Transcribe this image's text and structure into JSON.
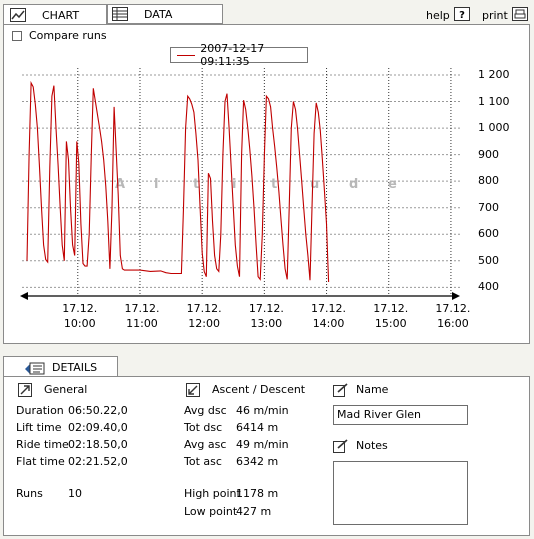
{
  "tabs": [
    {
      "label": "CHART",
      "icon": "chart-icon"
    },
    {
      "label": "DATA",
      "icon": "table-icon"
    }
  ],
  "header": {
    "help_label": "help",
    "print_label": "print"
  },
  "chart_options": {
    "compare_runs_label": "Compare runs",
    "compare_runs_checked": false
  },
  "chart_data": {
    "type": "line",
    "legend": [
      "2007-12-17 09:11:35"
    ],
    "series": [
      {
        "name": "2007-12-17 09:11:35",
        "color": "#c00000"
      }
    ],
    "watermark": "A l t i t u d e",
    "y_ticks": [
      "1 200",
      "1 100",
      "1 000",
      "900",
      "800",
      "700",
      "600",
      "500",
      "400"
    ],
    "y_tick_values": [
      1200,
      1100,
      1000,
      900,
      800,
      700,
      600,
      500,
      400
    ],
    "ylim": [
      390,
      1200
    ],
    "x_ticks": [
      {
        "date": "17.12.",
        "time": "10:00"
      },
      {
        "date": "17.12.",
        "time": "11:00"
      },
      {
        "date": "17.12.",
        "time": "12:00"
      },
      {
        "date": "17.12.",
        "time": "13:00"
      },
      {
        "date": "17.12.",
        "time": "14:00"
      },
      {
        "date": "17.12.",
        "time": "15:00"
      },
      {
        "date": "17.12.",
        "time": "16:00"
      }
    ],
    "x_tick_values": [
      "10:00",
      "11:00",
      "12:00",
      "13:00",
      "14:00",
      "15:00",
      "16:00"
    ],
    "xlim": [
      "09:11",
      "16:02"
    ],
    "grid": true,
    "points": [
      [
        "09:11",
        500
      ],
      [
        "09:13",
        900
      ],
      [
        "09:15",
        1170
      ],
      [
        "09:17",
        1155
      ],
      [
        "09:19",
        1090
      ],
      [
        "09:21",
        1000
      ],
      [
        "09:23",
        860
      ],
      [
        "09:25",
        700
      ],
      [
        "09:27",
        560
      ],
      [
        "09:29",
        505
      ],
      [
        "09:31",
        495
      ],
      [
        "09:33",
        850
      ],
      [
        "09:35",
        1120
      ],
      [
        "09:37",
        1160
      ],
      [
        "09:39",
        1000
      ],
      [
        "09:41",
        860
      ],
      [
        "09:43",
        700
      ],
      [
        "09:45",
        560
      ],
      [
        "09:47",
        500
      ],
      [
        "09:49",
        950
      ],
      [
        "09:51",
        880
      ],
      [
        "09:53",
        700
      ],
      [
        "09:55",
        560
      ],
      [
        "09:57",
        520
      ],
      [
        "09:59",
        950
      ],
      [
        "10:01",
        870
      ],
      [
        "10:03",
        640
      ],
      [
        "10:05",
        490
      ],
      [
        "10:07",
        480
      ],
      [
        "10:09",
        480
      ],
      [
        "10:11",
        600
      ],
      [
        "10:13",
        900
      ],
      [
        "10:15",
        1150
      ],
      [
        "10:17",
        1100
      ],
      [
        "10:19",
        1050
      ],
      [
        "10:21",
        1000
      ],
      [
        "10:23",
        950
      ],
      [
        "10:25",
        880
      ],
      [
        "10:27",
        780
      ],
      [
        "10:29",
        650
      ],
      [
        "10:31",
        470
      ],
      [
        "10:33",
        700
      ],
      [
        "10:35",
        1080
      ],
      [
        "10:37",
        920
      ],
      [
        "10:39",
        750
      ],
      [
        "10:41",
        520
      ],
      [
        "10:43",
        470
      ],
      [
        "10:45",
        465
      ],
      [
        "10:50",
        465
      ],
      [
        "11:00",
        465
      ],
      [
        "11:10",
        460
      ],
      [
        "11:20",
        462
      ],
      [
        "11:25",
        455
      ],
      [
        "11:30",
        452
      ],
      [
        "11:40",
        452
      ],
      [
        "11:42",
        700
      ],
      [
        "11:44",
        1000
      ],
      [
        "11:46",
        1120
      ],
      [
        "11:48",
        1110
      ],
      [
        "11:50",
        1090
      ],
      [
        "11:52",
        1060
      ],
      [
        "11:54",
        980
      ],
      [
        "11:56",
        880
      ],
      [
        "11:58",
        700
      ],
      [
        "12:00",
        530
      ],
      [
        "12:02",
        460
      ],
      [
        "12:04",
        440
      ],
      [
        "12:06",
        830
      ],
      [
        "12:08",
        810
      ],
      [
        "12:10",
        650
      ],
      [
        "12:12",
        520
      ],
      [
        "12:14",
        470
      ],
      [
        "12:16",
        460
      ],
      [
        "12:18",
        600
      ],
      [
        "12:20",
        900
      ],
      [
        "12:22",
        1100
      ],
      [
        "12:24",
        1130
      ],
      [
        "12:26",
        1000
      ],
      [
        "12:28",
        850
      ],
      [
        "12:30",
        700
      ],
      [
        "12:32",
        560
      ],
      [
        "12:34",
        480
      ],
      [
        "12:36",
        440
      ],
      [
        "12:38",
        900
      ],
      [
        "12:40",
        1105
      ],
      [
        "12:42",
        1070
      ],
      [
        "12:44",
        1000
      ],
      [
        "12:46",
        920
      ],
      [
        "12:48",
        820
      ],
      [
        "12:50",
        700
      ],
      [
        "12:52",
        560
      ],
      [
        "12:54",
        440
      ],
      [
        "12:56",
        430
      ],
      [
        "12:58",
        600
      ],
      [
        "13:00",
        900
      ],
      [
        "13:02",
        1120
      ],
      [
        "13:04",
        1110
      ],
      [
        "13:06",
        1080
      ],
      [
        "13:08",
        1000
      ],
      [
        "13:10",
        930
      ],
      [
        "13:12",
        850
      ],
      [
        "13:14",
        760
      ],
      [
        "13:16",
        660
      ],
      [
        "13:18",
        560
      ],
      [
        "13:20",
        470
      ],
      [
        "13:22",
        430
      ],
      [
        "13:24",
        700
      ],
      [
        "13:26",
        1000
      ],
      [
        "13:28",
        1100
      ],
      [
        "13:30",
        1070
      ],
      [
        "13:32",
        1000
      ],
      [
        "13:34",
        900
      ],
      [
        "13:36",
        800
      ],
      [
        "13:38",
        700
      ],
      [
        "13:40",
        600
      ],
      [
        "13:42",
        520
      ],
      [
        "13:44",
        427
      ],
      [
        "13:46",
        700
      ],
      [
        "13:48",
        980
      ],
      [
        "13:50",
        1095
      ],
      [
        "13:52",
        1060
      ],
      [
        "13:54",
        990
      ],
      [
        "13:56",
        880
      ],
      [
        "13:58",
        760
      ],
      [
        "14:00",
        640
      ],
      [
        "14:01",
        520
      ],
      [
        "14:02",
        420
      ]
    ]
  },
  "details": {
    "tab_label": "DETAILS",
    "general": {
      "title": "General",
      "rows": [
        {
          "label": "Duration",
          "value": "06:50.22,0"
        },
        {
          "label": "Lift time",
          "value": "02:09.40,0"
        },
        {
          "label": "Ride time",
          "value": "02:18.50,0"
        },
        {
          "label": "Flat time",
          "value": "02:21.52,0"
        }
      ],
      "runs_label": "Runs",
      "runs_value": "10"
    },
    "ascent": {
      "title": "Ascent / Descent",
      "rows": [
        {
          "label": "Avg dsc",
          "value": "46 m/min"
        },
        {
          "label": "Tot dsc",
          "value": "6414 m"
        },
        {
          "label": "Avg asc",
          "value": "49 m/min"
        },
        {
          "label": "Tot asc",
          "value": "6342 m"
        }
      ],
      "high_label": "High point",
      "high_value": "1178 m",
      "low_label": "Low point",
      "low_value": "427 m"
    },
    "name": {
      "title": "Name",
      "value": "Mad River Glen"
    },
    "notes": {
      "title": "Notes",
      "value": ""
    }
  }
}
